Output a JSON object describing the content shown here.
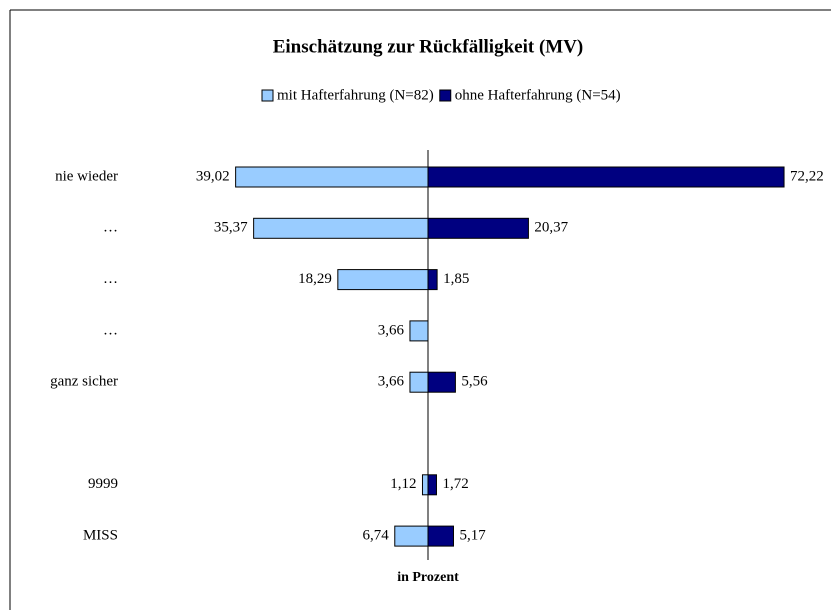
{
  "chart_data": {
    "type": "diverging-bar",
    "title": "Einschätzung zur Rückfälligkeit (MV)",
    "x_label": "in Prozent",
    "categories": [
      "nie wieder",
      "…",
      "…",
      "…",
      "ganz sicher",
      null,
      "9999",
      "MISS"
    ],
    "series": [
      {
        "name": "mit Hafterfahrung (N=82)",
        "color": "#99ccff",
        "values": [
          39.02,
          35.37,
          18.29,
          3.66,
          3.66,
          null,
          1.12,
          6.74
        ],
        "value_labels": [
          "39,02",
          "35,37",
          "18,29",
          "3,66",
          "3,66",
          null,
          "1,12",
          "6,74"
        ]
      },
      {
        "name": "ohne Hafterfahrung (N=54)",
        "color": "#000080",
        "values": [
          72.22,
          20.37,
          1.85,
          null,
          5.56,
          null,
          1.72,
          5.17
        ],
        "value_labels": [
          "72,22",
          "20,37",
          "1,85",
          null,
          "5,56",
          null,
          "1,72",
          "5,17"
        ]
      }
    ]
  }
}
